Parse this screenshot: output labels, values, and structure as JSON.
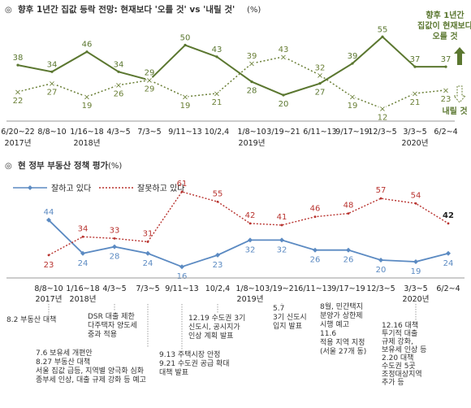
{
  "colors": {
    "rise": "#5b7730",
    "fall": "#6a7f36",
    "good": "#5b8ac2",
    "bad": "#b8332f",
    "text": "#222222",
    "annotation": "#333333"
  },
  "chart_data": [
    {
      "type": "line",
      "title": "향후 1년간 집값 등락 전망: 현재보다 '오를 것' vs '내릴 것'",
      "unit": "(%)",
      "categories": [
        "6/20~22",
        "8/8~10",
        "1/16~18",
        "4/3~5",
        "7/3~5",
        "9/11~13",
        "10/2,4",
        "1/8~10",
        "3/19~21",
        "6/11~13",
        "9/17~19",
        "12/3~5",
        "3/3~5",
        "6/2~4"
      ],
      "years": [
        {
          "label": "2017년",
          "at_category": 0
        },
        {
          "label": "2018년",
          "at_category": 2
        },
        {
          "label": "2019년",
          "at_category": 7
        },
        {
          "label": "2020년",
          "at_category": 12
        }
      ],
      "series": [
        {
          "name": "향후 1년간 집값이 현재보다 오를 것",
          "style": "solid",
          "values": [
            38,
            34,
            46,
            34,
            29,
            50,
            43,
            28,
            20,
            27,
            39,
            55,
            37,
            37
          ]
        },
        {
          "name": "내릴 것",
          "style": "dotted",
          "values": [
            22,
            27,
            19,
            26,
            29,
            19,
            21,
            39,
            43,
            32,
            19,
            12,
            21,
            23
          ]
        }
      ],
      "legend": {
        "rise_lines": [
          "향후 1년간",
          "집값이 현재보다",
          "오를 것"
        ],
        "fall": "내릴 것"
      }
    },
    {
      "type": "line",
      "title": "현 정부 부동산 정책 평가",
      "unit": "(%)",
      "categories": [
        "8/8~10",
        "1/16~18",
        "4/3~5",
        "7/3~5",
        "9/11~13",
        "10/2,4",
        "1/8~10",
        "3/19~21",
        "6/11~13",
        "9/17~19",
        "12/3~5",
        "3/3~5",
        "6/2~4"
      ],
      "years": [
        {
          "label": "2017년",
          "at_category": 0
        },
        {
          "label": "2018년",
          "at_category": 1
        },
        {
          "label": "2019년",
          "at_category": 6
        },
        {
          "label": "2020년",
          "at_category": 11
        }
      ],
      "series": [
        {
          "name": "잘하고 있다",
          "style": "solid",
          "values": [
            44,
            24,
            28,
            24,
            16,
            23,
            32,
            32,
            26,
            26,
            20,
            19,
            24
          ]
        },
        {
          "name": "잘못하고 있다",
          "style": "dotted",
          "values": [
            23,
            34,
            33,
            31,
            61,
            55,
            42,
            41,
            46,
            48,
            57,
            54,
            42
          ]
        }
      ],
      "annotations": [
        {
          "at_category": 0,
          "lines": [
            "8.2 부동산 대책"
          ]
        },
        {
          "at_category": 2,
          "lines": [
            "DSR 대출 제한",
            "다주택자 양도세",
            "중과 적용"
          ]
        },
        {
          "at_category": 3,
          "lines": [
            "7.6 보유세 개편안",
            "8.27 부동산 대책",
            "서울 집값 급등, 지역별 양극화 심화",
            "종부세 인상, 대출 규제 강화 등 예고"
          ]
        },
        {
          "at_category": 4,
          "lines": [
            "9.13 주택시장 안정",
            "9.21 수도권 공급 확대",
            "대책 발표"
          ]
        },
        {
          "at_category": 5,
          "lines": [
            "12.19 수도권 3기",
            "신도시, 공시지가",
            "인상 계획 발표"
          ]
        },
        {
          "at_category": 7,
          "lines": [
            "5.7",
            "3기 신도시",
            "입지 발표"
          ]
        },
        {
          "at_category": 9,
          "lines": [
            "8월, 민간택지",
            "분양가 상한제",
            "시행 예고",
            "11.6",
            "적용 지역 지정",
            "(서울 27개 동)"
          ]
        },
        {
          "at_category": 11,
          "lines": [
            "12.16 대책",
            "투기적 대출",
            "규제 강화,",
            "보유세 인상 등",
            "2.20 대책",
            "수도권 5곳",
            "조정대상지역",
            "추가 등"
          ]
        }
      ]
    }
  ]
}
